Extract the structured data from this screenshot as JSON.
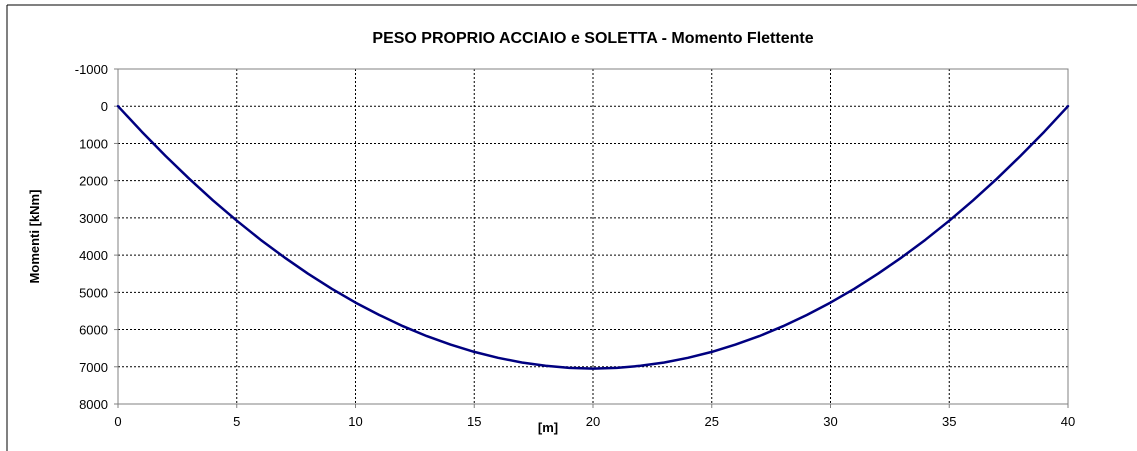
{
  "chart_data": {
    "type": "line",
    "title": "PESO PROPRIO ACCIAIO e SOLETTA - Momento Flettente",
    "xlabel": "[m]",
    "ylabel": "Momenti [kNm]",
    "xlim": [
      0,
      40
    ],
    "ylim": [
      -1000,
      8000
    ],
    "y_inverted": true,
    "grid": true,
    "x_ticks": [
      0,
      5,
      10,
      15,
      20,
      25,
      30,
      35,
      40
    ],
    "y_ticks": [
      -1000,
      0,
      1000,
      2000,
      3000,
      4000,
      5000,
      6000,
      7000,
      8000
    ],
    "series": [
      {
        "color": "#000080",
        "x": [
          0,
          1,
          2,
          3,
          4,
          5,
          6,
          7,
          8,
          9,
          10,
          11,
          12,
          13,
          14,
          15,
          16,
          17,
          18,
          19,
          20,
          21,
          22,
          23,
          24,
          25,
          26,
          27,
          28,
          29,
          30,
          31,
          32,
          33,
          34,
          35,
          36,
          37,
          38,
          39,
          40
        ],
        "y": [
          0,
          685,
          1335,
          1950,
          2530,
          3075,
          3585,
          4060,
          4500,
          4905,
          5275,
          5610,
          5910,
          6175,
          6405,
          6600,
          6760,
          6885,
          6975,
          7030,
          7050,
          7030,
          6975,
          6885,
          6760,
          6600,
          6405,
          6175,
          5910,
          5610,
          5275,
          4905,
          4500,
          4060,
          3585,
          3075,
          2530,
          1950,
          1335,
          685,
          0
        ]
      }
    ]
  }
}
